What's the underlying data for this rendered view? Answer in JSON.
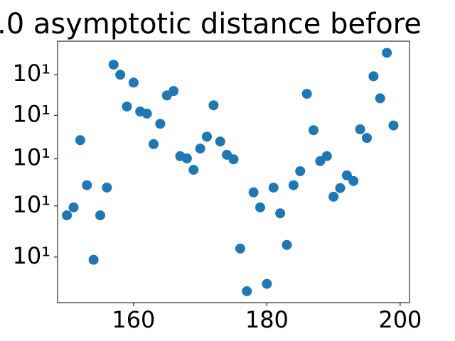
{
  "chart_data": {
    "type": "scatter",
    "title": ".0 asymptotic distance before",
    "x": [
      150,
      151,
      152,
      153,
      154,
      155,
      156,
      157,
      158,
      159,
      160,
      161,
      162,
      163,
      164,
      165,
      166,
      167,
      168,
      169,
      170,
      171,
      172,
      173,
      174,
      175,
      176,
      177,
      178,
      179,
      180,
      181,
      182,
      183,
      184,
      185,
      186,
      187,
      188,
      189,
      190,
      191,
      192,
      193,
      194,
      195,
      196,
      197,
      198,
      199
    ],
    "values": [
      11.81,
      11.97,
      13.42,
      12.43,
      10.95,
      11.81,
      12.38,
      15.26,
      15.0,
      14.21,
      14.8,
      14.09,
      14.04,
      13.33,
      13.8,
      14.48,
      14.59,
      13.06,
      13.01,
      12.76,
      13.23,
      13.5,
      14.24,
      13.39,
      13.09,
      12.99,
      11.16,
      10.38,
      12.28,
      11.97,
      10.51,
      12.38,
      11.85,
      11.23,
      12.43,
      12.73,
      14.52,
      13.65,
      12.95,
      13.06,
      12.19,
      12.37,
      12.64,
      12.52,
      13.67,
      13.47,
      14.96,
      14.41,
      15.57,
      13.76
    ],
    "color": "#1f77b4",
    "xlim": [
      148.6,
      201.4
    ],
    "xticks": [
      160,
      180,
      200
    ],
    "ylim": [
      10.18,
      15.88
    ],
    "yscale": "log",
    "yticks": [
      {
        "value": 11,
        "label": "10¹"
      },
      {
        "value": 12,
        "label": "10¹"
      },
      {
        "value": 13,
        "label": "10¹"
      },
      {
        "value": 14,
        "label": "10¹"
      },
      {
        "value": 15,
        "label": "10¹"
      }
    ],
    "grid": false
  }
}
